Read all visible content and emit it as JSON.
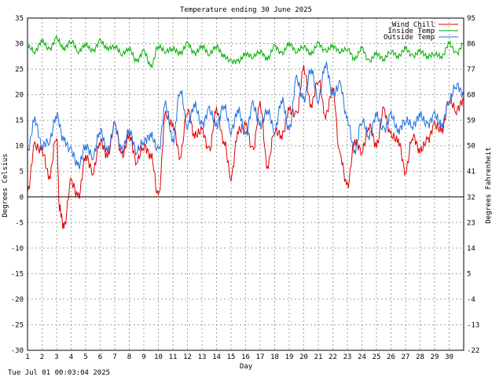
{
  "chart_data": {
    "type": "line",
    "title": "Temperature ending 30 June 2025",
    "xlabel": "Day",
    "ylabel_left": "Degrees Celsius",
    "ylabel_right": "Degrees Fahrenheit",
    "footer": "Tue Jul 01 00:03:04 2025",
    "xlim": [
      1,
      31
    ],
    "ylim": [
      -30,
      35
    ],
    "grid": true,
    "legend_position": "top-right",
    "x_ticks": [
      "1",
      "2",
      "3",
      "4",
      "5",
      "6",
      "7",
      "8",
      "9",
      "10",
      "11",
      "12",
      "13",
      "14",
      "15",
      "16",
      "17",
      "18",
      "19",
      "20",
      "21",
      "22",
      "23",
      "24",
      "25",
      "26",
      "27",
      "28",
      "29",
      "30"
    ],
    "y_ticks_left": [
      "35",
      "30",
      "25",
      "20",
      "15",
      "10",
      "5",
      "0",
      "-5",
      "-10",
      "-15",
      "-20",
      "-25",
      "-30"
    ],
    "y_ticks_right": [
      "95",
      "86",
      "77",
      "68",
      "59",
      "50",
      "41",
      "32",
      "23",
      "14",
      "5",
      "-4",
      "-13",
      "-22"
    ],
    "series": [
      {
        "name": "Wind Chill",
        "color": "#e00000",
        "x": [
          1,
          1.5,
          2,
          2.5,
          3,
          3.2,
          3.5,
          4,
          4.5,
          5,
          5.5,
          6,
          6.5,
          7,
          7.5,
          8,
          8.5,
          9,
          9.5,
          10,
          10.5,
          11,
          11.5,
          12,
          12.5,
          13,
          13.5,
          14,
          14.5,
          15,
          15.5,
          16,
          16.5,
          17,
          17.5,
          18,
          18.5,
          19,
          19.5,
          20,
          20.5,
          21,
          21.5,
          22,
          22.5,
          23,
          23.5,
          24,
          24.5,
          25,
          25.5,
          26,
          26.5,
          27,
          27.5,
          28,
          28.5,
          29,
          29.5,
          30,
          30.5,
          31
        ],
        "values": [
          1,
          10,
          9,
          4,
          12,
          -2,
          -6,
          3,
          0,
          8,
          5,
          11,
          8,
          14,
          8,
          12,
          7,
          10,
          8,
          0,
          16,
          14,
          8,
          17,
          12,
          13,
          9,
          17,
          11,
          4,
          13,
          14,
          9,
          18,
          6,
          13,
          12,
          17,
          16,
          25,
          18,
          23,
          16,
          21,
          8,
          2,
          11,
          9,
          14,
          10,
          17,
          12,
          11,
          5,
          12,
          9,
          11,
          14,
          13,
          19,
          17,
          19
        ],
        "x_sparse": true
      },
      {
        "name": "Inside Temp",
        "color": "#00b000",
        "x": [
          1,
          1.5,
          2,
          2.5,
          3,
          3.5,
          4,
          4.5,
          5,
          5.5,
          6,
          6.5,
          7,
          7.5,
          8,
          8.5,
          9,
          9.5,
          10,
          10.5,
          11,
          11.5,
          12,
          12.5,
          13,
          13.5,
          14,
          14.5,
          15,
          15.5,
          16,
          16.5,
          17,
          17.5,
          18,
          18.5,
          19,
          19.5,
          20,
          20.5,
          21,
          21.5,
          22,
          22.5,
          23,
          23.5,
          24,
          24.5,
          25,
          25.5,
          26,
          26.5,
          27,
          27.5,
          28,
          28.5,
          29,
          29.5,
          30,
          30.5,
          31
        ],
        "values": [
          29.5,
          28.5,
          30.5,
          28.8,
          31,
          29,
          30.5,
          28.5,
          29.8,
          28.5,
          30.5,
          29,
          29.5,
          28,
          29,
          26.5,
          28.5,
          25.5,
          29.5,
          28.5,
          29,
          28,
          30,
          28,
          29.5,
          28,
          29.5,
          27.5,
          26.5,
          26.5,
          28,
          27.5,
          28.5,
          27,
          29.5,
          28,
          30,
          28.5,
          29.5,
          28,
          30,
          28.5,
          29.5,
          28.5,
          29,
          27,
          29,
          26.5,
          28,
          27,
          28.5,
          27.5,
          29,
          27.5,
          28.5,
          27.5,
          28,
          27.5,
          30,
          28,
          30
        ]
      },
      {
        "name": "Outside Temp",
        "color": "#2070e0",
        "x": [
          1,
          1.5,
          2,
          2.5,
          3,
          3.5,
          4,
          4.5,
          5,
          5.5,
          6,
          6.5,
          7,
          7.5,
          8,
          8.5,
          9,
          9.5,
          10,
          10.5,
          11,
          11.5,
          12,
          12.5,
          13,
          13.5,
          14,
          14.5,
          15,
          15.5,
          16,
          16.5,
          17,
          17.5,
          18,
          18.5,
          19,
          19.5,
          20,
          20.5,
          21,
          21.5,
          22,
          22.5,
          23,
          23.5,
          24,
          24.5,
          25,
          25.5,
          26,
          26.5,
          27,
          27.5,
          28,
          28.5,
          29,
          29.5,
          30,
          30.5,
          31
        ],
        "values": [
          9,
          15,
          10,
          11,
          16,
          11,
          9,
          6,
          10,
          8,
          13,
          9,
          14,
          9,
          13,
          9,
          11,
          12,
          9,
          18,
          11,
          21,
          14,
          18,
          14,
          17,
          14,
          18,
          13,
          17,
          12,
          18,
          14,
          17,
          13,
          19,
          13,
          23,
          19,
          25,
          19,
          26,
          20,
          22,
          15,
          9,
          15,
          12,
          16,
          13,
          16,
          13,
          15,
          14,
          16,
          14,
          16,
          14,
          19,
          22,
          20
        ],
        "x_sparse": true
      }
    ]
  }
}
